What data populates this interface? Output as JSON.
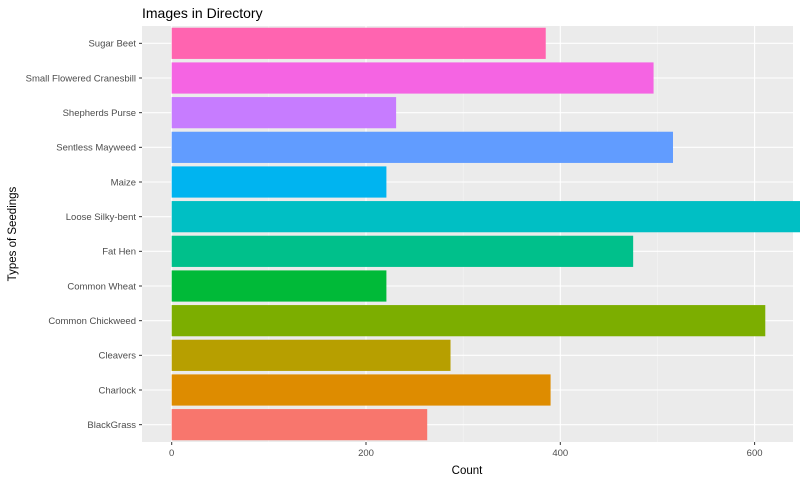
{
  "chart_data": {
    "type": "bar",
    "orientation": "horizontal",
    "title": "Images in Directory",
    "xlabel": "Count",
    "ylabel": "Types of Seedings",
    "categories": [
      "BlackGrass",
      "Charlock",
      "Cleavers",
      "Common Chickweed",
      "Common Wheat",
      "Fat Hen",
      "Loose Silky-bent",
      "Maize",
      "Sentless Mayweed",
      "Shepherds Purse",
      "Small Flowered Cranesbill",
      "Sugar Beet"
    ],
    "values": [
      263,
      390,
      287,
      611,
      221,
      475,
      654,
      221,
      516,
      231,
      496,
      385
    ],
    "colors": [
      "#F8766D",
      "#DE8C00",
      "#B79F00",
      "#7CAE00",
      "#00BA38",
      "#00C08B",
      "#00BFC4",
      "#00B4F0",
      "#619CFF",
      "#C77CFF",
      "#F564E3",
      "#FF64B0"
    ],
    "xlim": [
      0,
      660
    ],
    "xticks": [
      0,
      200,
      400,
      600
    ],
    "grid": true,
    "legend": "none"
  }
}
